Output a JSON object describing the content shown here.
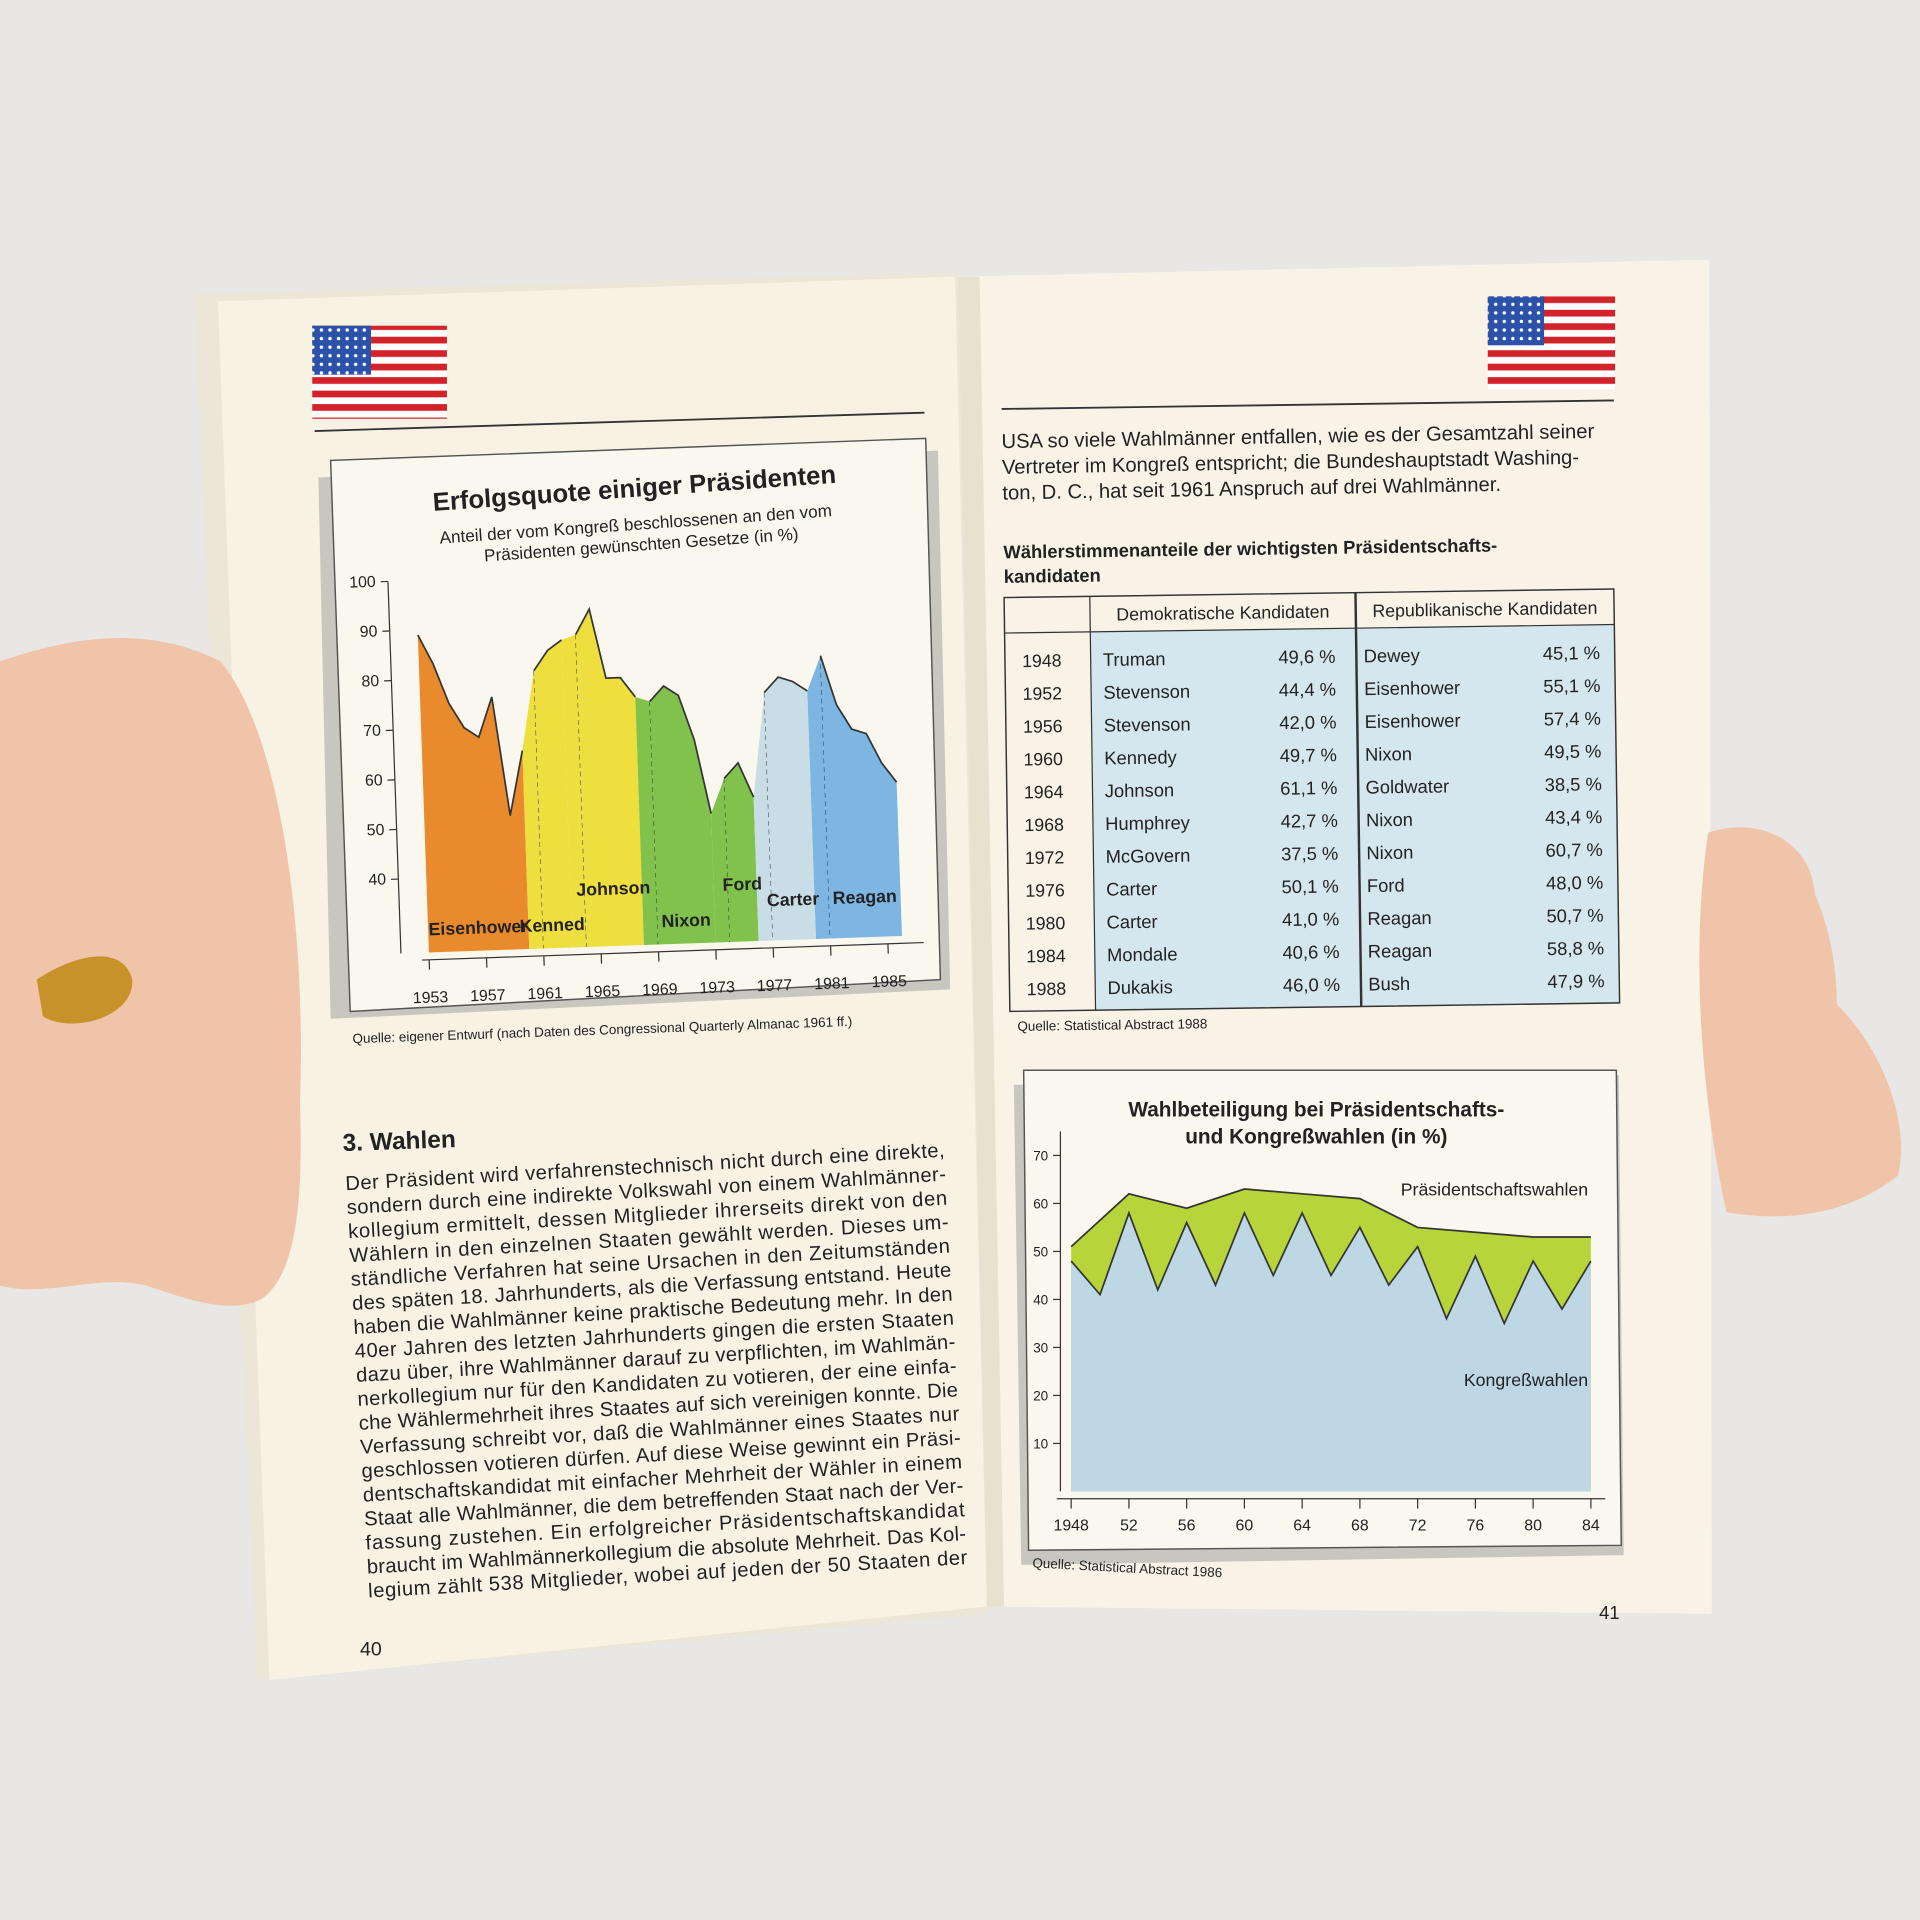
{
  "left_page": {
    "page_number": "40",
    "chart_source": "Quelle: eigener Entwurf (nach Daten des Congressional Quarterly Almanac 1961 ff.)",
    "section_title": "3. Wahlen",
    "paragraph_lines": [
      "Der Präsident wird verfahrenstechnisch nicht durch eine direkte,",
      "sondern durch eine indirekte Volkswahl von einem Wahlmänner-",
      "kollegium ermittelt, dessen Mitglieder ihrerseits direkt von den",
      "Wählern in den einzelnen Staaten gewählt werden. Dieses um-",
      "ständliche Verfahren hat seine Ursachen in den Zeitumständen",
      "des späten 18. Jahrhunderts, als die Verfassung entstand. Heute",
      "haben die Wahlmänner keine praktische Bedeutung mehr. In den",
      "40er Jahren des letzten Jahrhunderts gingen die ersten Staaten",
      "dazu über, ihre Wahlmänner darauf zu verpflichten, im Wahlmän-",
      "nerkollegium nur für den Kandidaten zu votieren, der eine einfa-",
      "che Wählermehrheit ihres Staates auf sich vereinigen konnte. Die",
      "Verfassung schreibt vor, daß die Wahlmänner eines Staates nur",
      "geschlossen votieren dürfen. Auf diese Weise gewinnt ein Präsi-",
      "dentschaftskandidat mit einfacher Mehrheit der Wähler in einem",
      "Staat alle Wahlmänner, die dem betreffenden Staat nach der Ver-",
      "fassung zustehen. Ein erfolgreicher Präsidentschaftskandidat",
      "braucht im Wahlmännerkollegium die absolute Mehrheit. Das Kol-",
      "legium zählt 538 Mitglieder, wobei auf jeden der 50 Staaten der"
    ]
  },
  "right_page": {
    "page_number": "41",
    "intro_lines": [
      "USA so viele Wahlmänner entfallen, wie es der Gesamtzahl seiner",
      "Vertreter im Kongreß entspricht; die Bundeshauptstadt Washing-",
      "ton, D. C., hat seit 1961 Anspruch auf drei Wahlmänner."
    ],
    "table": {
      "title_lines": [
        "Wählerstimmenanteile der wichtigsten Präsidentschafts-",
        "kandidaten"
      ],
      "header": [
        "Demokratische Kandidaten",
        "Republikanische Kandidaten"
      ],
      "rows": [
        [
          "1948",
          "Truman",
          "49,6 %",
          "Dewey",
          "45,1 %"
        ],
        [
          "1952",
          "Stevenson",
          "44,4 %",
          "Eisenhower",
          "55,1 %"
        ],
        [
          "1956",
          "Stevenson",
          "42,0 %",
          "Eisenhower",
          "57,4 %"
        ],
        [
          "1960",
          "Kennedy",
          "49,7 %",
          "Nixon",
          "49,5 %"
        ],
        [
          "1964",
          "Johnson",
          "61,1 %",
          "Goldwater",
          "38,5 %"
        ],
        [
          "1968",
          "Humphrey",
          "42,7 %",
          "Nixon",
          "43,4 %"
        ],
        [
          "1972",
          "McGovern",
          "37,5 %",
          "Nixon",
          "60,7 %"
        ],
        [
          "1976",
          "Carter",
          "50,1 %",
          "Ford",
          "48,0 %"
        ],
        [
          "1980",
          "Carter",
          "41,0 %",
          "Reagan",
          "50,7 %"
        ],
        [
          "1984",
          "Mondale",
          "40,6 %",
          "Reagan",
          "58,8 %"
        ],
        [
          "1988",
          "Dukakis",
          "46,0 %",
          "Bush",
          "47,9 %"
        ]
      ],
      "source": "Quelle: Statistical Abstract 1988"
    },
    "chart_source": "Quelle: Statistical Abstract 1986"
  },
  "chart_data": [
    {
      "type": "area",
      "title": "Erfolgsquote einiger Präsidenten",
      "subtitle_lines": [
        "Anteil der vom Kongreß beschlossenen an den vom",
        "Präsidenten gewünschten Gesetze (in %)"
      ],
      "xlim": [
        1952.5,
        1987.5
      ],
      "xticks": [
        1953,
        1957,
        1961,
        1965,
        1969,
        1973,
        1977,
        1981,
        1985
      ],
      "ylim": [
        25,
        100
      ],
      "yticks": [
        40,
        50,
        60,
        70,
        80,
        90,
        100
      ],
      "series": [
        {
          "name": "Eisenhower",
          "color": "#e98a2c",
          "x": [
            1953,
            1954,
            1955,
            1956,
            1957,
            1958,
            1959,
            1960
          ],
          "values": [
            89,
            83,
            75,
            70,
            68,
            76,
            52,
            65
          ]
        },
        {
          "name": "Kennedy",
          "color": "#eede3e",
          "x": [
            1961,
            1962,
            1963
          ],
          "values": [
            81,
            85,
            87
          ]
        },
        {
          "name": "Johnson",
          "color": "#eede3e",
          "x": [
            1964,
            1965,
            1966,
            1967,
            1968
          ],
          "values": [
            88,
            93,
            79,
            79,
            75
          ]
        },
        {
          "name": "Nixon",
          "color": "#80c24c",
          "x": [
            1969,
            1970,
            1971,
            1972,
            1973
          ],
          "values": [
            74,
            77,
            75,
            66,
            51
          ]
        },
        {
          "name": "Ford",
          "color": "#80c24c",
          "x": [
            1974,
            1975,
            1976
          ],
          "values": [
            58,
            61,
            54
          ]
        },
        {
          "name": "Carter",
          "color": "#c9dde6",
          "x": [
            1977,
            1978,
            1979,
            1980
          ],
          "values": [
            75,
            78,
            77,
            75
          ]
        },
        {
          "name": "Reagan",
          "color": "#7db6e2",
          "x": [
            1981,
            1982,
            1983,
            1984,
            1985,
            1986
          ],
          "values": [
            82,
            72,
            67,
            66,
            60,
            56
          ]
        }
      ]
    },
    {
      "type": "area",
      "title_lines": [
        "Wahlbeteiligung bei Präsidentschafts-",
        "und Kongreßwahlen (in %)"
      ],
      "xlim": [
        1947,
        1985
      ],
      "xticks": [
        1948,
        {
          "value": 1952,
          "label": "52"
        },
        {
          "value": 1956,
          "label": "56"
        },
        {
          "value": 1960,
          "label": "60"
        },
        {
          "value": 1964,
          "label": "64"
        },
        {
          "value": 1968,
          "label": "68"
        },
        {
          "value": 1972,
          "label": "72"
        },
        {
          "value": 1976,
          "label": "76"
        },
        {
          "value": 1980,
          "label": "80"
        },
        {
          "value": 1984,
          "label": "84"
        }
      ],
      "ylim": [
        0,
        75
      ],
      "yticks": [
        10,
        20,
        30,
        40,
        50,
        60,
        70
      ],
      "series": [
        {
          "name": "Präsidentschaftswahlen",
          "color": "#b7d43a",
          "x": [
            1948,
            1952,
            1956,
            1960,
            1964,
            1968,
            1972,
            1976,
            1980,
            1984
          ],
          "values": [
            51,
            62,
            59,
            63,
            62,
            61,
            55,
            54,
            53,
            53
          ]
        },
        {
          "name": "Kongreßwahlen",
          "color": "#bed7e5",
          "x": [
            1948,
            1950,
            1952,
            1954,
            1956,
            1958,
            1960,
            1962,
            1964,
            1966,
            1968,
            1970,
            1972,
            1974,
            1976,
            1978,
            1980,
            1982,
            1984
          ],
          "values": [
            48,
            41,
            58,
            42,
            56,
            43,
            58,
            45,
            58,
            45,
            55,
            43,
            51,
            36,
            49,
            35,
            48,
            38,
            48
          ]
        }
      ]
    }
  ]
}
